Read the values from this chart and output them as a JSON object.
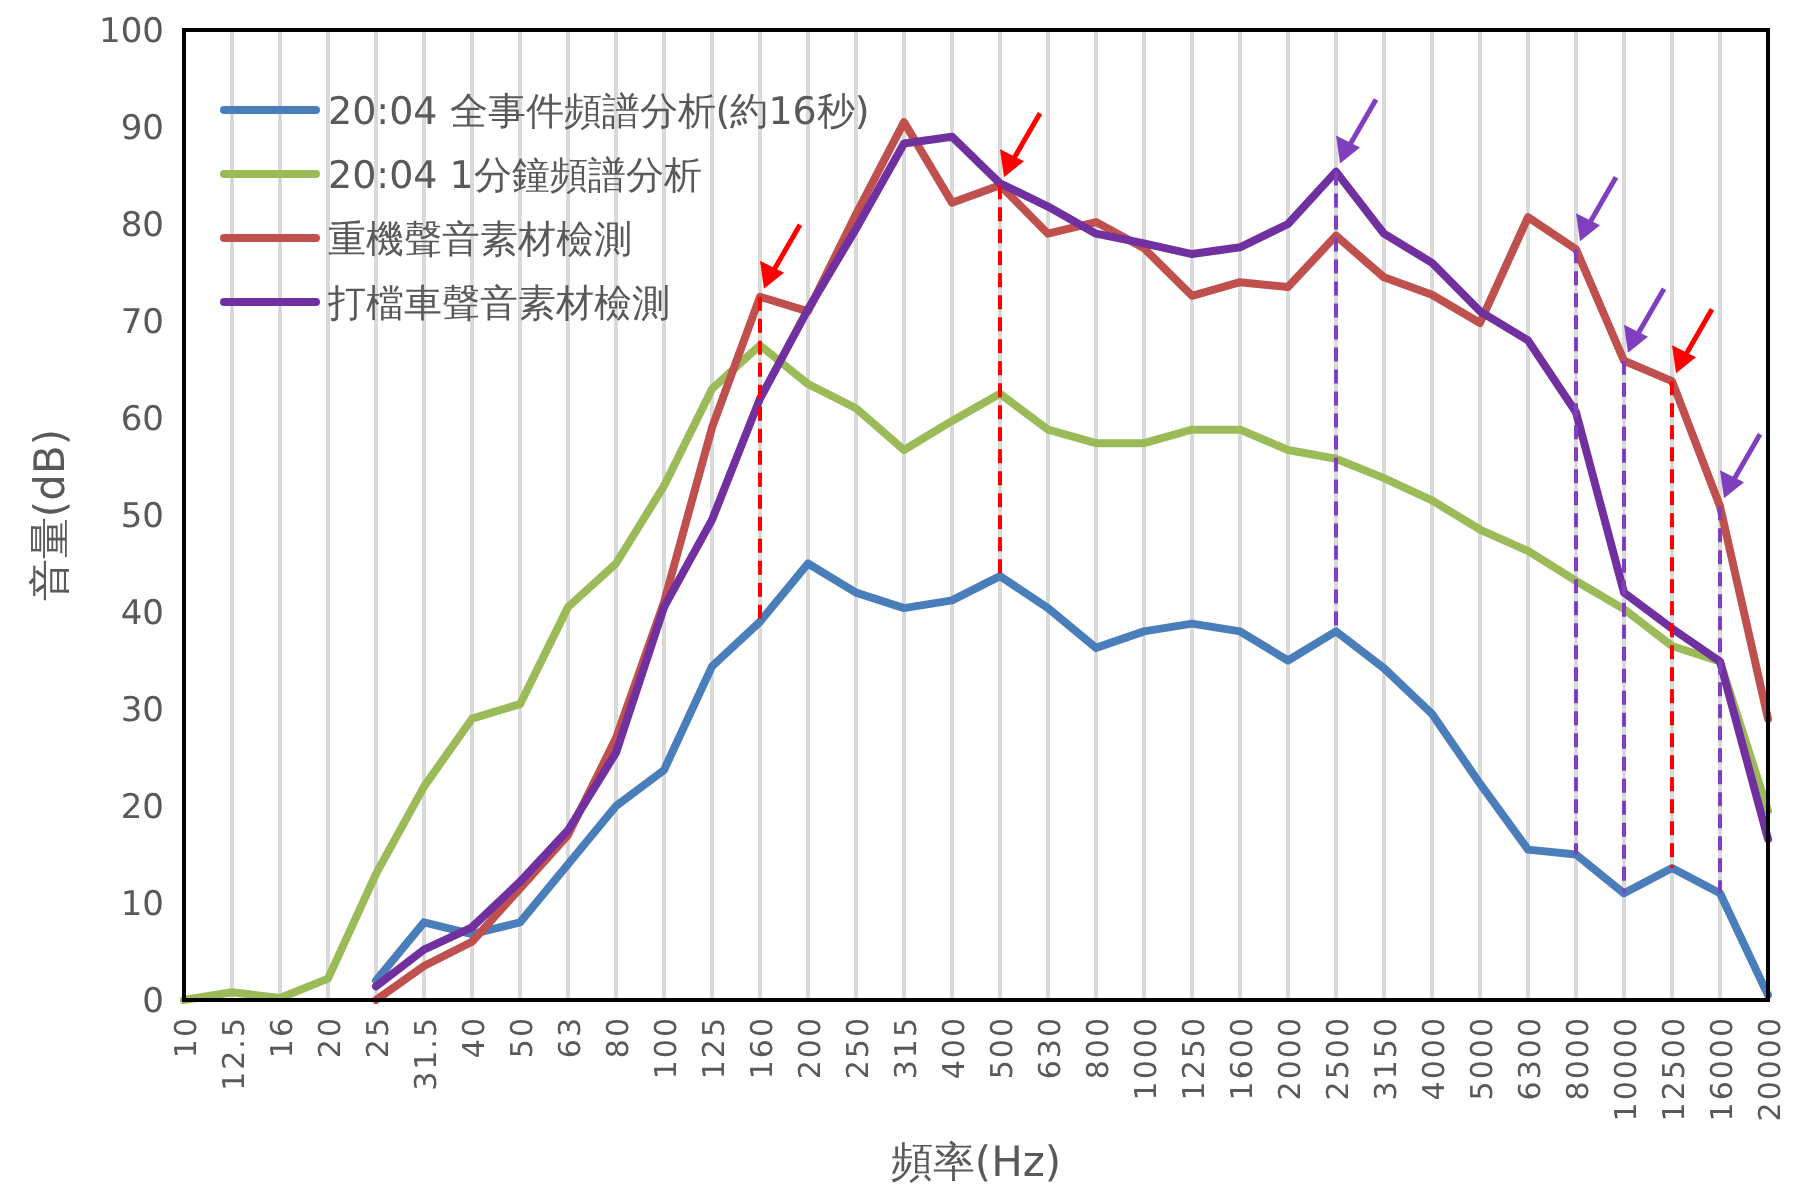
{
  "chart_data": {
    "type": "line",
    "xlabel": "頻率(Hz)",
    "ylabel": "音量(dB)",
    "categories": [
      "10",
      "12.5",
      "16",
      "20",
      "25",
      "31.5",
      "40",
      "50",
      "63",
      "80",
      "100",
      "125",
      "160",
      "200",
      "250",
      "315",
      "400",
      "500",
      "630",
      "800",
      "1000",
      "1250",
      "1600",
      "2000",
      "2500",
      "3150",
      "4000",
      "5000",
      "6300",
      "8000",
      "10000",
      "12500",
      "16000",
      "20000"
    ],
    "ylim": [
      0,
      100
    ],
    "yticks": [
      0,
      10,
      20,
      30,
      40,
      50,
      60,
      70,
      80,
      90,
      100
    ],
    "grid": "x",
    "legend": "top left",
    "series": [
      {
        "name": "20:04 全事件頻譜分析(約16秒)",
        "color": "#4a7ebb",
        "values": [
          null,
          null,
          null,
          null,
          2,
          8,
          6.8,
          8,
          14,
          20,
          23.7,
          34.4,
          39,
          45,
          42,
          40.4,
          41.2,
          43.7,
          40.4,
          36.3,
          38,
          38.8,
          38,
          35,
          38,
          34.2,
          29.5,
          22.3,
          15.5,
          15,
          11,
          13.6,
          11,
          0.5
        ]
      },
      {
        "name": "20:04 1分鐘頻譜分析",
        "color": "#9bbb59",
        "values": [
          0,
          0.8,
          0.2,
          2.2,
          13,
          22,
          29,
          30.5,
          40.5,
          45,
          53,
          63,
          67.5,
          63.5,
          61,
          56.7,
          59.7,
          62.5,
          58.8,
          57.4,
          57.4,
          58.8,
          58.8,
          56.7,
          55.8,
          53.8,
          51.5,
          48.5,
          46.3,
          43.2,
          40.3,
          36.5,
          34.9,
          19.5
        ]
      },
      {
        "name": "重機聲音素材檢測",
        "color": "#c0504d",
        "values": [
          null,
          null,
          null,
          null,
          0,
          3.5,
          6,
          11.5,
          17,
          27,
          41,
          59,
          72.5,
          71,
          81,
          90.5,
          82.2,
          84,
          79,
          80.2,
          77.5,
          72.6,
          74,
          73.5,
          78.8,
          74.5,
          72.7,
          69.8,
          80.7,
          77.4,
          65.9,
          63.8,
          50.9,
          29
        ]
      },
      {
        "name": "打檔車聲音素材檢測",
        "color": "#7030a0",
        "values": [
          null,
          null,
          null,
          null,
          1.4,
          5.2,
          7.5,
          12.2,
          17.5,
          25.5,
          40.5,
          49.5,
          62,
          71.2,
          79.5,
          88.3,
          89,
          84.2,
          81.8,
          79,
          78,
          76.9,
          77.6,
          80,
          85.4,
          79,
          76,
          71,
          68,
          60.6,
          42,
          38.3,
          34.9,
          16.6
        ]
      }
    ]
  }
}
